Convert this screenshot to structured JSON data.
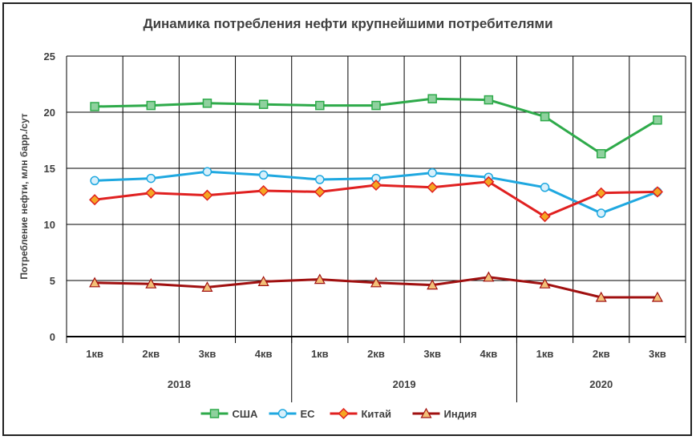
{
  "chart_data": {
    "type": "line",
    "title": "Динамика потребления нефти крупнейшими потребителями",
    "ylabel": "Потребление нефти, млн барр./сут",
    "xlabel": "",
    "ylim": [
      0,
      25
    ],
    "yticks": [
      0,
      5,
      10,
      15,
      20,
      25
    ],
    "grid": true,
    "legend_position": "bottom",
    "categories": [
      "1кв",
      "2кв",
      "3кв",
      "4кв",
      "1кв",
      "2кв",
      "3кв",
      "4кв",
      "1кв",
      "2кв",
      "3кв"
    ],
    "years": [
      {
        "label": "2018",
        "quarters": 4
      },
      {
        "label": "2019",
        "quarters": 4
      },
      {
        "label": "2020",
        "quarters": 3
      }
    ],
    "series": [
      {
        "name": "США",
        "color": "#2eaa4a",
        "fill": "#8fd19e",
        "marker": "square",
        "values": [
          20.5,
          20.6,
          20.8,
          20.7,
          20.6,
          20.6,
          21.2,
          21.1,
          19.6,
          16.3,
          19.3
        ]
      },
      {
        "name": "ЕС",
        "color": "#1fa8e0",
        "fill": "#d8f0fb",
        "marker": "circle",
        "values": [
          13.9,
          14.1,
          14.7,
          14.4,
          14.0,
          14.1,
          14.6,
          14.2,
          13.3,
          11.0,
          12.9
        ]
      },
      {
        "name": "Китай",
        "color": "#e02020",
        "fill": "#f5a623",
        "marker": "diamond",
        "values": [
          12.2,
          12.8,
          12.6,
          13.0,
          12.9,
          13.5,
          13.3,
          13.8,
          10.7,
          12.8,
          12.9
        ]
      },
      {
        "name": "Индия",
        "color": "#a01010",
        "fill": "#f2c078",
        "marker": "triangle",
        "values": [
          4.8,
          4.7,
          4.4,
          4.9,
          5.1,
          4.8,
          4.6,
          5.3,
          4.7,
          3.5,
          3.5
        ]
      }
    ]
  }
}
